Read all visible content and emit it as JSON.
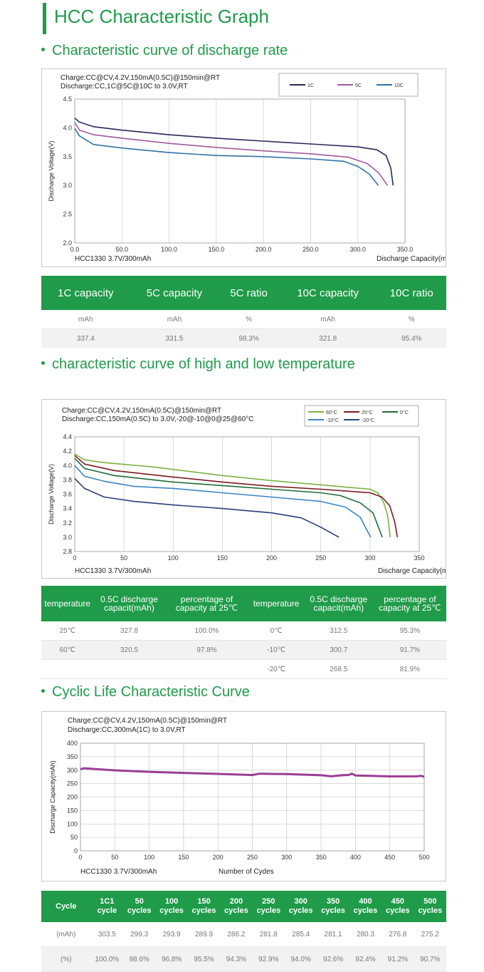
{
  "page_title": "HCC Characteristic Graph",
  "colors": {
    "accent": "#1f9b49",
    "c1": "#26295c",
    "c5": "#a05a9a",
    "c10": "#2f73a6",
    "t60": "#7cb342",
    "t25": "#7a1a22",
    "t0": "#1e6e3a",
    "tm10": "#3a86c4",
    "tm20": "#2c3f7a",
    "cycle": "#9b3e95"
  },
  "sections": {
    "rate": "Characteristic curve of discharge rate",
    "temp": "characteristic curve of high and low temperature",
    "cycle": "Cyclic Life Characteristic Curve"
  },
  "chart_data": [
    {
      "type": "line",
      "notes": [
        "Charge:CC@CV,4.2V,150mA(0.5C)@150min@RT",
        "Discharge:CC,1C@5C@10C to 3.0V,RT"
      ],
      "model": "HCC1330  3.7V/300mAh",
      "xlabel": "Discharge Capacity(mAh)",
      "ylabel": "Discharge Voltage(V)",
      "xlim": [
        0,
        350
      ],
      "ylim": [
        2.0,
        4.5
      ],
      "xticks": [
        "0.0",
        "50.0",
        "100.0",
        "150.0",
        "200.0",
        "250.0",
        "300.0",
        "350.0"
      ],
      "yticks": [
        "2.0",
        "2.5",
        "3.0",
        "3.5",
        "4.0",
        "4.5"
      ],
      "grid": "vertical",
      "legend_position": "top-right",
      "series": [
        {
          "name": "1C",
          "color": "#26295c",
          "points": [
            [
              0,
              4.17
            ],
            [
              5,
              4.1
            ],
            [
              20,
              4.02
            ],
            [
              50,
              3.96
            ],
            [
              100,
              3.88
            ],
            [
              150,
              3.82
            ],
            [
              200,
              3.77
            ],
            [
              250,
              3.72
            ],
            [
              300,
              3.67
            ],
            [
              320,
              3.62
            ],
            [
              330,
              3.52
            ],
            [
              335,
              3.3
            ],
            [
              337.4,
              3.0
            ]
          ]
        },
        {
          "name": "5C",
          "color": "#a05a9a",
          "points": [
            [
              0,
              4.09
            ],
            [
              5,
              3.96
            ],
            [
              20,
              3.88
            ],
            [
              50,
              3.82
            ],
            [
              100,
              3.73
            ],
            [
              150,
              3.66
            ],
            [
              200,
              3.6
            ],
            [
              250,
              3.55
            ],
            [
              290,
              3.49
            ],
            [
              310,
              3.38
            ],
            [
              322,
              3.22
            ],
            [
              331.5,
              3.0
            ]
          ]
        },
        {
          "name": "10C",
          "color": "#2f73a6",
          "points": [
            [
              0,
              3.99
            ],
            [
              5,
              3.86
            ],
            [
              20,
              3.71
            ],
            [
              50,
              3.65
            ],
            [
              100,
              3.57
            ],
            [
              150,
              3.52
            ],
            [
              200,
              3.5
            ],
            [
              250,
              3.46
            ],
            [
              285,
              3.42
            ],
            [
              300,
              3.33
            ],
            [
              312,
              3.2
            ],
            [
              321.8,
              3.0
            ]
          ]
        }
      ]
    },
    {
      "type": "line",
      "notes": [
        "Charge:CC@CV,4.2V,150mA(0.5C)@150min@RT",
        "Discharge:CC,150mA(0.5C) to 3.0V,-20@-10@0@25@60°C"
      ],
      "model": "HCC1330  3.7V/300mAh",
      "xlabel": "Discharge Capacity(mAh)",
      "ylabel": "Discharge Voltage(V)",
      "xlim": [
        0,
        350
      ],
      "ylim": [
        2.8,
        4.4
      ],
      "xticks": [
        "0",
        "50",
        "100",
        "150",
        "200",
        "250",
        "300",
        "350"
      ],
      "yticks": [
        "2.8",
        "3.0",
        "3.2",
        "3.4",
        "3.6",
        "3.8",
        "4.0",
        "4.2",
        "4.4"
      ],
      "grid": "vertical",
      "legend_position": "top-right",
      "series": [
        {
          "name": "60°C",
          "color": "#7cb342",
          "points": [
            [
              0,
              4.16
            ],
            [
              10,
              4.08
            ],
            [
              30,
              4.04
            ],
            [
              80,
              3.98
            ],
            [
              150,
              3.86
            ],
            [
              200,
              3.79
            ],
            [
              250,
              3.73
            ],
            [
              300,
              3.67
            ],
            [
              308,
              3.62
            ],
            [
              314,
              3.48
            ],
            [
              318,
              3.3
            ],
            [
              320.5,
              3.0
            ]
          ]
        },
        {
          "name": "25°C",
          "color": "#7a1a22",
          "points": [
            [
              0,
              4.14
            ],
            [
              10,
              4.02
            ],
            [
              40,
              3.93
            ],
            [
              100,
              3.84
            ],
            [
              150,
              3.77
            ],
            [
              200,
              3.71
            ],
            [
              250,
              3.67
            ],
            [
              300,
              3.62
            ],
            [
              312,
              3.56
            ],
            [
              320,
              3.44
            ],
            [
              325,
              3.22
            ],
            [
              327.8,
              3.0
            ]
          ]
        },
        {
          "name": "0°C",
          "color": "#1e6e3a",
          "points": [
            [
              0,
              4.1
            ],
            [
              10,
              3.96
            ],
            [
              40,
              3.86
            ],
            [
              100,
              3.77
            ],
            [
              150,
              3.72
            ],
            [
              200,
              3.67
            ],
            [
              250,
              3.62
            ],
            [
              270,
              3.58
            ],
            [
              290,
              3.48
            ],
            [
              303,
              3.34
            ],
            [
              312.5,
              3.0
            ]
          ]
        },
        {
          "name": "-10°C",
          "color": "#3a86c4",
          "points": [
            [
              0,
              4.0
            ],
            [
              10,
              3.85
            ],
            [
              30,
              3.78
            ],
            [
              60,
              3.71
            ],
            [
              100,
              3.68
            ],
            [
              150,
              3.62
            ],
            [
              200,
              3.56
            ],
            [
              250,
              3.5
            ],
            [
              275,
              3.42
            ],
            [
              290,
              3.28
            ],
            [
              300.7,
              3.0
            ]
          ]
        },
        {
          "name": "-20°C",
          "color": "#2c3f7a",
          "points": [
            [
              0,
              3.82
            ],
            [
              10,
              3.68
            ],
            [
              30,
              3.56
            ],
            [
              60,
              3.5
            ],
            [
              100,
              3.45
            ],
            [
              150,
              3.4
            ],
            [
              200,
              3.34
            ],
            [
              230,
              3.27
            ],
            [
              250,
              3.14
            ],
            [
              268.5,
              3.0
            ]
          ]
        }
      ]
    },
    {
      "type": "line",
      "notes": [
        "Charge:CC@CV,4.2V,150mA(0.5C)@150min@RT",
        "Discharge:CC,300mA(1C) to 3.0V,RT"
      ],
      "model": "HCC1330 3.7V/300mAh",
      "xlabel": "Number of Cydes",
      "ylabel": "Discharge Capacity(mAh)",
      "xlim": [
        0,
        500
      ],
      "ylim": [
        0,
        400
      ],
      "xticks": [
        "0",
        "50",
        "100",
        "150",
        "200",
        "250",
        "300",
        "350",
        "400",
        "450",
        "500"
      ],
      "yticks": [
        "0",
        "50",
        "100",
        "150",
        "200",
        "250",
        "300",
        "350",
        "400"
      ],
      "grid": "both",
      "series": [
        {
          "name": "",
          "color": "#9b3e95",
          "points": [
            [
              0,
              303.5
            ],
            [
              5,
              307
            ],
            [
              50,
              299.3
            ],
            [
              100,
              293.9
            ],
            [
              150,
              289.9
            ],
            [
              200,
              286.2
            ],
            [
              240,
              283
            ],
            [
              250,
              281.8
            ],
            [
              260,
              287
            ],
            [
              300,
              285.4
            ],
            [
              350,
              281.1
            ],
            [
              365,
              277
            ],
            [
              380,
              281
            ],
            [
              390,
              282
            ],
            [
              395,
              287
            ],
            [
              400,
              280.3
            ],
            [
              450,
              276.8
            ],
            [
              490,
              277
            ],
            [
              495,
              279
            ],
            [
              500,
              275.2
            ]
          ]
        }
      ]
    }
  ],
  "table1": {
    "headers": [
      "1C capacity",
      "5C capacity",
      "5C ratio",
      "10C capacity",
      "10C ratio"
    ],
    "units": [
      "mAh",
      "mAh",
      "%",
      "mAh",
      "%"
    ],
    "values": [
      "337.4",
      "331.5",
      "98.3%",
      "321.8",
      "95.4%"
    ]
  },
  "table2": {
    "headers": [
      "temperature",
      "0.5C discharge capacit(mAh)",
      "percentage of capacity at 25℃",
      "temperature",
      "0.5C discharge capacit(mAh)",
      "percentage of capacity at 25℃"
    ],
    "rows": [
      [
        "25℃",
        "327.8",
        "100.0%",
        "0℃",
        "312.5",
        "95.3%"
      ],
      [
        "60℃",
        "320.5",
        "97.8%",
        "-10℃",
        "300.7",
        "91.7%"
      ],
      [
        "",
        "",
        "",
        "-20℃",
        "268.5",
        "81.9%"
      ]
    ]
  },
  "table3": {
    "headers": [
      "Cycle",
      "1C1 cycle",
      "50 cycles",
      "100 cycles",
      "150 cycles",
      "200 cycles",
      "250 cycles",
      "300 cycles",
      "350 cycles",
      "400 cycles",
      "450 cycles",
      "500 cycles"
    ],
    "rows": [
      [
        "(mAh)",
        "303.5",
        "299.3",
        "293.9",
        "289.9",
        "286.2",
        "281.8",
        "285.4",
        "281.1",
        "280.3",
        "276.8",
        "275.2"
      ],
      [
        "(%)",
        "100.0%",
        "98.6%",
        "96.8%",
        "95.5%",
        "94.3%",
        "92.9%",
        "94.0%",
        "92.6%",
        "92.4%",
        "91.2%",
        "90.7%"
      ]
    ]
  }
}
